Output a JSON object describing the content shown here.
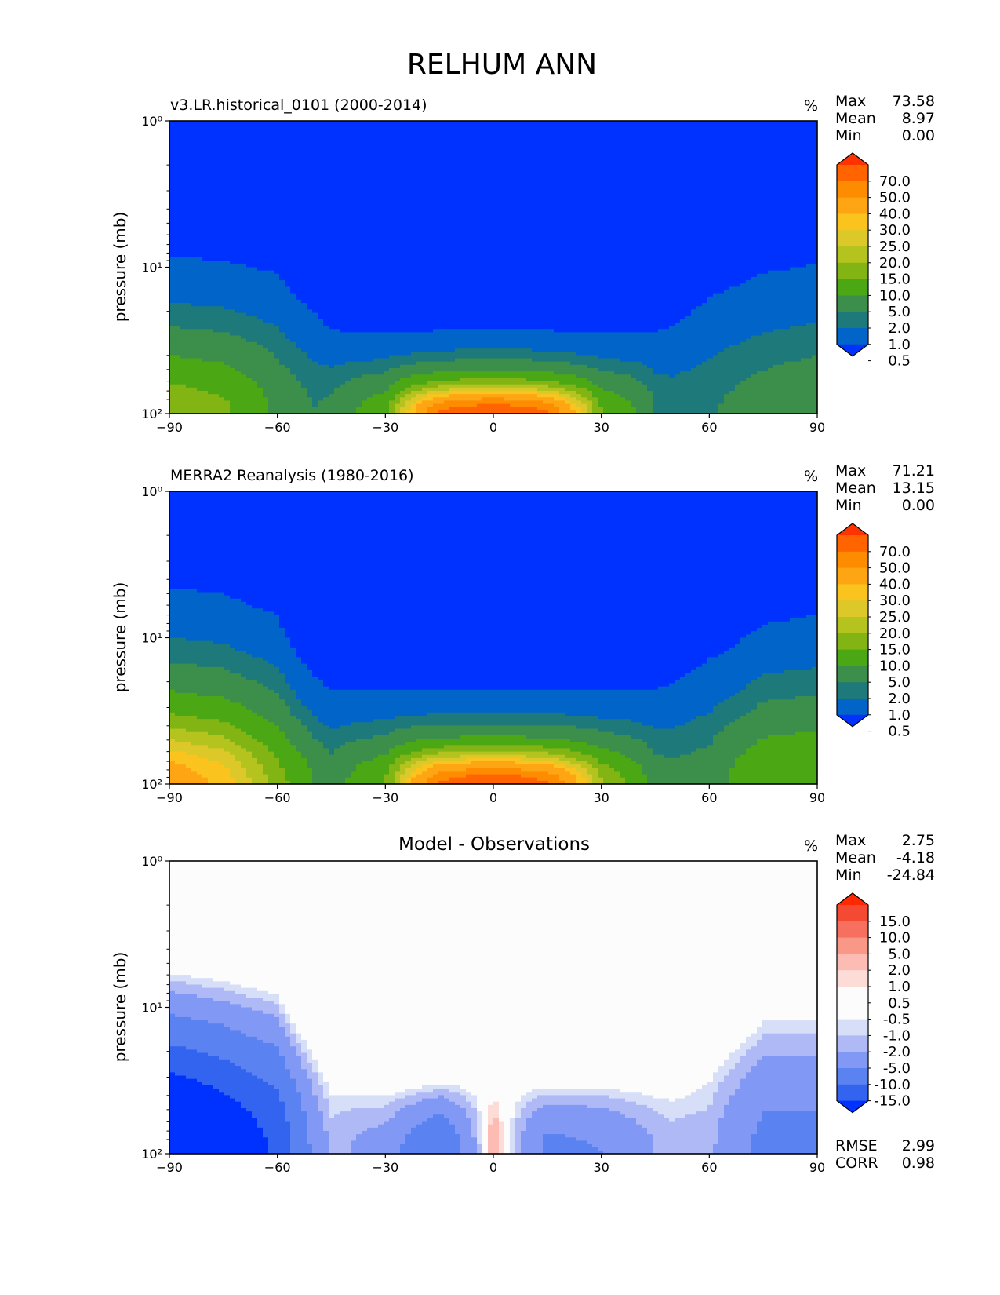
{
  "figure": {
    "title": "RELHUM ANN"
  },
  "colors": {
    "abs_levels": [
      "#0032ff",
      "#0064c8",
      "#1e7a7a",
      "#3c8f4b",
      "#4ba814",
      "#82b414",
      "#b4c31e",
      "#dcc828",
      "#fac31e",
      "#fda512",
      "#fd8c00",
      "#ff6400",
      "#ff3200"
    ],
    "diff_levels": [
      "#0032ff",
      "#3264f0",
      "#5a82f0",
      "#8298f5",
      "#afb9f5",
      "#d7def8",
      "#fcfcfc",
      "#fcfcfc",
      "#fddcd8",
      "#fcbcb4",
      "#fa9888",
      "#f7705f",
      "#f44a34",
      "#ff2800"
    ]
  },
  "chart_data": [
    {
      "type": "heatmap",
      "title": "v3.LR.historical_0101 (2000-2014)",
      "units": "%",
      "ylabel": "pressure (mb)",
      "xlim": [
        -90,
        90
      ],
      "ylim": [
        100,
        1
      ],
      "y_scale": "log",
      "x_ticks": [
        "−90",
        "−60",
        "−30",
        "0",
        "30",
        "60",
        "90"
      ],
      "y_ticks": [
        "10⁰",
        "10¹",
        "10²"
      ],
      "stats": {
        "max_label": "Max",
        "max": "73.58",
        "mean_label": "Mean",
        "mean": "8.97",
        "min_label": "Min",
        "min": "0.00"
      },
      "colorbar": {
        "levels": [
          "70.0",
          "50.0",
          "40.0",
          "30.0",
          "25.0",
          "20.0",
          "15.0",
          "10.0",
          "5.0",
          "2.0",
          "1.0",
          "0.5"
        ],
        "extend": "both"
      },
      "profile": {
        "lat": [
          -90,
          -75,
          -60,
          -50,
          -45,
          -30,
          -15,
          0,
          15,
          30,
          45,
          50,
          60,
          75,
          90
        ],
        "top_rh_level_pressure_mb": [
          8.5,
          9,
          11,
          20,
          27,
          28,
          27,
          26,
          27,
          28,
          28,
          25,
          16,
          11,
          9.5
        ],
        "peak_rh": [
          14,
          11,
          4,
          2,
          2.5,
          8,
          50,
          60,
          50,
          10,
          2,
          1.5,
          1.8,
          3,
          4
        ]
      }
    },
    {
      "type": "heatmap",
      "title": "MERRA2 Reanalysis (1980-2016)",
      "units": "%",
      "ylabel": "pressure (mb)",
      "xlim": [
        -90,
        90
      ],
      "ylim": [
        100,
        1
      ],
      "y_scale": "log",
      "x_ticks": [
        "−90",
        "−60",
        "−30",
        "0",
        "30",
        "60",
        "90"
      ],
      "y_ticks": [
        "10⁰",
        "10¹",
        "10²"
      ],
      "stats": {
        "max_label": "Max",
        "max": "71.21",
        "mean_label": "Mean",
        "mean": "13.15",
        "min_label": "Min",
        "min": "0.00"
      },
      "colorbar": {
        "levels": [
          "70.0",
          "50.0",
          "40.0",
          "30.0",
          "25.0",
          "20.0",
          "15.0",
          "10.0",
          "5.0",
          "2.0",
          "1.0",
          "0.5"
        ],
        "extend": "both"
      },
      "profile": {
        "lat": [
          -90,
          -75,
          -60,
          -50,
          -45,
          -30,
          -15,
          0,
          15,
          30,
          45,
          50,
          60,
          75,
          90
        ],
        "top_rh_level_pressure_mb": [
          4.5,
          5,
          7,
          18,
          23,
          23,
          23,
          23,
          23,
          23,
          23,
          20,
          14,
          8,
          7
        ],
        "peak_rh": [
          35,
          28,
          12,
          5,
          3,
          10,
          50,
          60,
          50,
          15,
          3,
          2.5,
          3,
          9,
          10
        ]
      }
    },
    {
      "type": "heatmap",
      "title": "Model - Observations",
      "units": "%",
      "ylabel": "pressure (mb)",
      "xlim": [
        -90,
        90
      ],
      "ylim": [
        100,
        1
      ],
      "y_scale": "log",
      "x_ticks": [
        "−90",
        "−60",
        "−30",
        "0",
        "30",
        "60",
        "90"
      ],
      "y_ticks": [
        "10⁰",
        "10¹",
        "10²"
      ],
      "stats": {
        "max_label": "Max",
        "max": "2.75",
        "mean_label": "Mean",
        "mean": "-4.18",
        "min_label": "Min",
        "min": "-24.84"
      },
      "colorbar": {
        "levels": [
          "15.0",
          "10.0",
          "5.0",
          "2.0",
          "1.0",
          "0.5",
          "-0.5",
          "-1.0",
          "-2.0",
          "-5.0",
          "-10.0",
          "-15.0"
        ],
        "extend": "both"
      },
      "metrics": {
        "rmse_label": "RMSE",
        "rmse": "2.99",
        "corr_label": "CORR",
        "corr": "0.98"
      },
      "profile": {
        "lat": [
          -90,
          -75,
          -60,
          -50,
          -45,
          -30,
          -15,
          0,
          15,
          30,
          45,
          50,
          60,
          75,
          90
        ],
        "top_rh_level_pressure_mb": [
          4.5,
          5,
          6,
          14,
          23,
          30,
          28,
          27,
          28,
          28,
          27,
          26,
          16,
          8,
          8
        ],
        "peak_rh": [
          -24,
          -20,
          -14,
          -4,
          -1.5,
          -3,
          -10,
          2,
          -6,
          -5,
          -2,
          -1.5,
          -1.5,
          -6,
          -6
        ]
      }
    }
  ]
}
